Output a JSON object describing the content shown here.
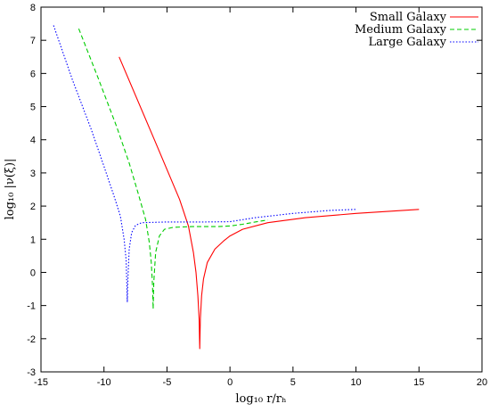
{
  "chart_data": {
    "type": "line",
    "title": "",
    "xlabel": "log₁₀ r/rₕ",
    "ylabel": "log₁₀ |ν(ξ)|",
    "xlim": [
      -15,
      20
    ],
    "ylim": [
      -3,
      8
    ],
    "xticks": [
      "-15",
      "-10",
      "-5",
      "0",
      "5",
      "10",
      "15",
      "20"
    ],
    "yticks": [
      "-3",
      "-2",
      "-1",
      "0",
      "1",
      "2",
      "3",
      "4",
      "5",
      "6",
      "7",
      "8"
    ],
    "xtick_values": [
      -15,
      -10,
      -5,
      0,
      5,
      10,
      15,
      20
    ],
    "ytick_values": [
      -3,
      -2,
      -1,
      0,
      1,
      2,
      3,
      4,
      5,
      6,
      7,
      8
    ],
    "grid": false,
    "legend": {
      "placement": "top-right"
    },
    "series": [
      {
        "name": "Small Galaxy",
        "color": "#ff0000",
        "dash": "solid",
        "points": [
          [
            -8.8,
            6.5
          ],
          [
            -6,
            4.0
          ],
          [
            -4,
            2.2
          ],
          [
            -3.3,
            1.4
          ],
          [
            -2.9,
            0.6
          ],
          [
            -2.7,
            0.0
          ],
          [
            -2.55,
            -0.7
          ],
          [
            -2.45,
            -1.4
          ],
          [
            -2.4,
            -2.3
          ],
          [
            -2.35,
            -1.4
          ],
          [
            -2.25,
            -0.7
          ],
          [
            -2.1,
            -0.2
          ],
          [
            -1.8,
            0.3
          ],
          [
            -1.2,
            0.7
          ],
          [
            -0.5,
            0.95
          ],
          [
            0,
            1.1
          ],
          [
            1,
            1.3
          ],
          [
            3,
            1.5
          ],
          [
            6,
            1.65
          ],
          [
            10,
            1.78
          ],
          [
            15,
            1.9
          ]
        ]
      },
      {
        "name": "Medium Galaxy",
        "color": "#00cc00",
        "dash": "dashed",
        "points": [
          [
            -12,
            7.35
          ],
          [
            -10.5,
            5.9
          ],
          [
            -9,
            4.4
          ],
          [
            -8,
            3.3
          ],
          [
            -7.3,
            2.4
          ],
          [
            -6.7,
            1.6
          ],
          [
            -6.4,
            0.9
          ],
          [
            -6.25,
            0.3
          ],
          [
            -6.15,
            -0.4
          ],
          [
            -6.1,
            -1.1
          ],
          [
            -6.05,
            -0.3
          ],
          [
            -5.9,
            0.6
          ],
          [
            -5.6,
            1.1
          ],
          [
            -5.2,
            1.3
          ],
          [
            -4.5,
            1.36
          ],
          [
            -3,
            1.38
          ],
          [
            -1,
            1.38
          ],
          [
            0,
            1.4
          ],
          [
            1,
            1.45
          ],
          [
            2,
            1.52
          ],
          [
            3,
            1.58
          ]
        ]
      },
      {
        "name": "Large Galaxy",
        "color": "#0000ff",
        "dash": "dotted",
        "points": [
          [
            -14,
            7.45
          ],
          [
            -12.5,
            5.8
          ],
          [
            -11,
            4.3
          ],
          [
            -10,
            3.2
          ],
          [
            -9.2,
            2.3
          ],
          [
            -8.7,
            1.7
          ],
          [
            -8.4,
            1.0
          ],
          [
            -8.25,
            0.4
          ],
          [
            -8.2,
            -0.2
          ],
          [
            -8.15,
            -0.9
          ],
          [
            -8.1,
            -0.2
          ],
          [
            -8.0,
            0.7
          ],
          [
            -7.8,
            1.2
          ],
          [
            -7.5,
            1.42
          ],
          [
            -7,
            1.5
          ],
          [
            -5,
            1.52
          ],
          [
            -2,
            1.52
          ],
          [
            0,
            1.53
          ],
          [
            2,
            1.65
          ],
          [
            5,
            1.78
          ],
          [
            8,
            1.87
          ],
          [
            10,
            1.9
          ]
        ]
      }
    ]
  }
}
